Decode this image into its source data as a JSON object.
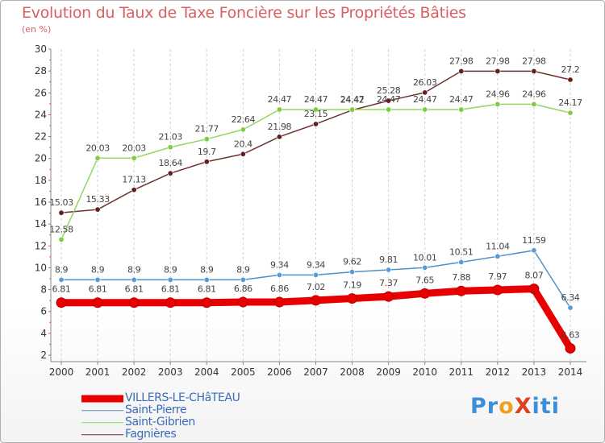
{
  "chart_title": "Evolution du Taux de Taxe Foncière sur les Propriétés Bâties",
  "unit_label": "(en %)",
  "logo": {
    "text": "ProXiti",
    "letters": [
      "P",
      "r",
      "o",
      "X",
      "i",
      "t",
      "i"
    ],
    "colors": [
      "#3a8fd8",
      "#3a8fd8",
      "#f0a020",
      "#e04020",
      "#3a8fd8",
      "#3a8fd8",
      "#3a8fd8"
    ]
  },
  "chart_data": {
    "type": "line",
    "title": "Evolution du Taux de Taxe Foncière sur les Propriétés Bâties",
    "ylabel": "(en %)",
    "xlabel": "",
    "x": [
      2000,
      2001,
      2002,
      2003,
      2004,
      2005,
      2006,
      2007,
      2008,
      2009,
      2010,
      2011,
      2012,
      2013,
      2014
    ],
    "ylim": [
      2,
      30
    ],
    "yticks": [
      2,
      4,
      6,
      8,
      10,
      12,
      14,
      16,
      18,
      20,
      22,
      24,
      26,
      28,
      30
    ],
    "grid": "vertical-dashed",
    "legend_position": "bottom-left",
    "series": [
      {
        "name": "VILLERS-LE-CHâTEAU",
        "color": "#e80000",
        "marker_color": "#e80000",
        "line_width": 9,
        "values": [
          6.81,
          6.81,
          6.81,
          6.81,
          6.81,
          6.86,
          6.86,
          7.02,
          7.19,
          7.37,
          7.65,
          7.88,
          7.97,
          8.07,
          2.63
        ],
        "labels": [
          "6.81",
          "6.81",
          "6.81",
          "6.81",
          "6.81",
          "6.86",
          "6.86",
          "7.02",
          "7.19",
          "7.37",
          "7.65",
          "7.88",
          "7.97",
          "8.07",
          "2.63"
        ]
      },
      {
        "name": "Saint-Pierre",
        "color": "#5090c8",
        "marker_color": "#5a9ad8",
        "line_width": 1.5,
        "values": [
          8.9,
          8.9,
          8.9,
          8.9,
          8.9,
          8.9,
          9.34,
          9.34,
          9.62,
          9.81,
          10.01,
          10.51,
          11.04,
          11.59,
          6.34
        ],
        "labels": [
          "8.9",
          "8.9",
          "8.9",
          "8.9",
          "8.9",
          "8.9",
          "9.34",
          "9.34",
          "9.62",
          "9.81",
          "10.01",
          "10.51",
          "11.04",
          "11.59",
          "6.34"
        ]
      },
      {
        "name": "Saint-Gibrien",
        "color": "#90d860",
        "marker_color": "#80cc40",
        "line_width": 1.5,
        "values": [
          12.58,
          20.03,
          20.03,
          21.03,
          21.77,
          22.64,
          24.47,
          24.47,
          24.47,
          24.47,
          24.47,
          24.47,
          24.96,
          24.96,
          24.17
        ],
        "labels": [
          "12.58",
          "20.03",
          "20.03",
          "21.03",
          "21.77",
          "22.64",
          "24.47",
          "24.47",
          "24.47",
          "24.47",
          "24.47",
          "24.47",
          "24.96",
          "24.96",
          "24.17"
        ]
      },
      {
        "name": "Fagnières",
        "color": "#703030",
        "marker_color": "#602020",
        "line_width": 1.5,
        "values": [
          15.03,
          15.33,
          17.13,
          18.64,
          19.7,
          20.4,
          21.98,
          23.15,
          24.42,
          25.28,
          26.03,
          27.98,
          27.98,
          27.98,
          27.2
        ],
        "labels": [
          "15.03",
          "15.33",
          "17.13",
          "18.64",
          "19.7",
          "20.4",
          "21.98",
          "23.15",
          "24.42",
          "25.28",
          "26.03",
          "27.98",
          "27.98",
          "27.98",
          "27.2"
        ]
      }
    ]
  }
}
